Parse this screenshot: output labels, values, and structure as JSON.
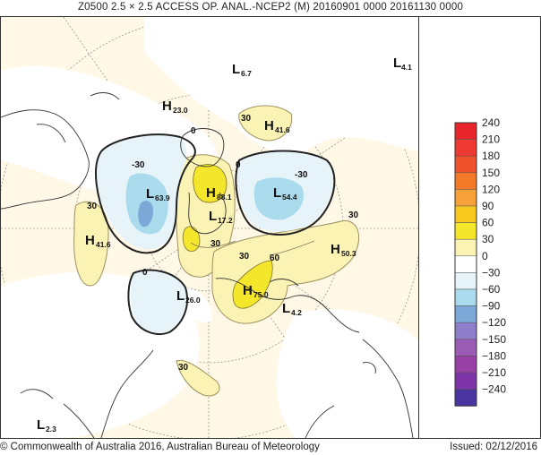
{
  "title": "Z0500  2.5 × 2.5 ACCESS OP. ANAL.-NCEP2 (M)  20160901 0000 20161130 0000",
  "footer": {
    "copyright": "© Commonwealth of Australia 2016, Australian Bureau of Meteorology",
    "issued": "Issued: 02/12/2016"
  },
  "legend": {
    "levels": [
      {
        "label": "240",
        "color": "#e8252a"
      },
      {
        "label": "210",
        "color": "#ee3a32"
      },
      {
        "label": "180",
        "color": "#f0522d"
      },
      {
        "label": "150",
        "color": "#f47a2a"
      },
      {
        "label": "120",
        "color": "#f8a13a"
      },
      {
        "label": "90",
        "color": "#f7c91e"
      },
      {
        "label": "60",
        "color": "#f4e62a"
      },
      {
        "label": "30",
        "color": "#fbf3b4"
      },
      {
        "label": "0",
        "color": "#ffffff"
      },
      {
        "label": "−30",
        "color": "#e6f4fa"
      },
      {
        "label": "−60",
        "color": "#a9dbec"
      },
      {
        "label": "−90",
        "color": "#7ca8d8"
      },
      {
        "label": "−120",
        "color": "#8f7fca"
      },
      {
        "label": "−150",
        "color": "#9a5bb4"
      },
      {
        "label": "−180",
        "color": "#9940a6"
      },
      {
        "label": "−210",
        "color": "#7d34a8"
      },
      {
        "label": "−240",
        "color": "#4a35a0"
      }
    ]
  },
  "map": {
    "centers": [
      {
        "letter": "L",
        "value": "6.7"
      },
      {
        "letter": "L",
        "value": "4.1"
      },
      {
        "letter": "H",
        "value": "23.0"
      },
      {
        "letter": "H",
        "value": "41.6"
      },
      {
        "letter": "L",
        "value": "63.9"
      },
      {
        "letter": "H",
        "value": "88.1"
      },
      {
        "letter": "L",
        "value": "54.4"
      },
      {
        "letter": "L",
        "value": "17.2"
      },
      {
        "letter": "H",
        "value": "41.6"
      },
      {
        "letter": "H",
        "value": "50.3"
      },
      {
        "letter": "H",
        "value": "75.0"
      },
      {
        "letter": "L",
        "value": "26.0"
      },
      {
        "letter": "L",
        "value": "4.2"
      },
      {
        "letter": "L",
        "value": "2.3"
      }
    ],
    "contour_labels": [
      "30",
      "0",
      "-30",
      "0",
      "-30",
      "30",
      "30",
      "30",
      "0",
      "30",
      "60",
      "30"
    ]
  }
}
